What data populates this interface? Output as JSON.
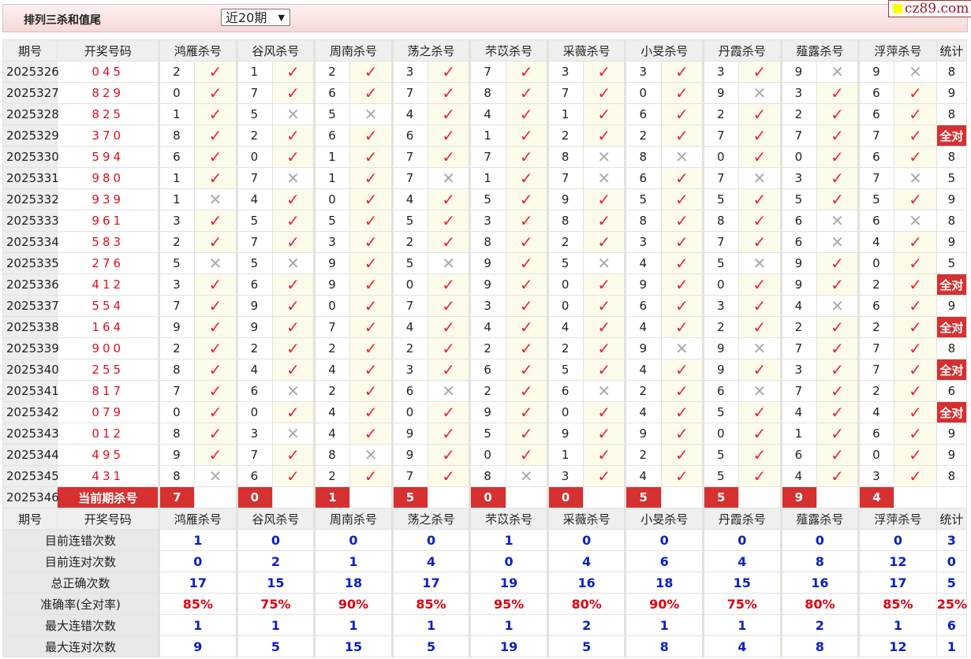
{
  "header": {
    "title": "排列三杀和值尾",
    "period_select": "近20期",
    "logo_text": "cz89.com"
  },
  "columns": {
    "period": "期号",
    "draw": "开奖号码",
    "groups": [
      "鸿雁杀号",
      "谷风杀号",
      "周南杀号",
      "荡之杀号",
      "芣苡杀号",
      "采薇杀号",
      "小旻杀号",
      "丹霞杀号",
      "薤露杀号",
      "浮萍杀号"
    ],
    "stat": "统计"
  },
  "marks": {
    "ok": "✓",
    "bad": "✕"
  },
  "colors": {
    "accent_red": "#d63030",
    "check_red": "#e8273b",
    "stat_blue": "#0a20c8"
  },
  "rows": [
    {
      "period": "2025326",
      "draw": "045",
      "nums": [
        2,
        1,
        2,
        3,
        7,
        3,
        3,
        3,
        9,
        9
      ],
      "ok": [
        1,
        1,
        1,
        1,
        1,
        1,
        1,
        1,
        0,
        0
      ],
      "stat": "8"
    },
    {
      "period": "2025327",
      "draw": "829",
      "nums": [
        0,
        7,
        6,
        7,
        8,
        7,
        0,
        9,
        3,
        6
      ],
      "ok": [
        1,
        1,
        1,
        1,
        1,
        1,
        1,
        0,
        1,
        1
      ],
      "stat": "9"
    },
    {
      "period": "2025328",
      "draw": "825",
      "nums": [
        1,
        5,
        5,
        4,
        4,
        1,
        6,
        2,
        2,
        6
      ],
      "ok": [
        1,
        0,
        0,
        1,
        1,
        1,
        1,
        1,
        1,
        1
      ],
      "stat": "8"
    },
    {
      "period": "2025329",
      "draw": "370",
      "nums": [
        8,
        2,
        6,
        6,
        1,
        2,
        2,
        7,
        7,
        7
      ],
      "ok": [
        1,
        1,
        1,
        1,
        1,
        1,
        1,
        1,
        1,
        1
      ],
      "stat": "全对"
    },
    {
      "period": "2025330",
      "draw": "594",
      "nums": [
        6,
        0,
        1,
        7,
        7,
        8,
        8,
        0,
        0,
        6
      ],
      "ok": [
        1,
        1,
        1,
        1,
        1,
        0,
        0,
        1,
        1,
        1
      ],
      "stat": "8"
    },
    {
      "period": "2025331",
      "draw": "980",
      "nums": [
        1,
        7,
        1,
        7,
        1,
        7,
        6,
        7,
        3,
        7
      ],
      "ok": [
        1,
        0,
        1,
        0,
        1,
        0,
        1,
        0,
        1,
        0
      ],
      "stat": "5"
    },
    {
      "period": "2025332",
      "draw": "939",
      "nums": [
        1,
        4,
        0,
        4,
        5,
        9,
        5,
        5,
        5,
        5
      ],
      "ok": [
        0,
        1,
        1,
        1,
        1,
        1,
        1,
        1,
        1,
        1
      ],
      "stat": "9"
    },
    {
      "period": "2025333",
      "draw": "961",
      "nums": [
        3,
        5,
        5,
        5,
        3,
        8,
        8,
        8,
        6,
        6
      ],
      "ok": [
        1,
        1,
        1,
        1,
        1,
        1,
        1,
        1,
        0,
        0
      ],
      "stat": "8"
    },
    {
      "period": "2025334",
      "draw": "583",
      "nums": [
        2,
        7,
        3,
        2,
        8,
        2,
        3,
        7,
        6,
        4
      ],
      "ok": [
        1,
        1,
        1,
        1,
        1,
        1,
        1,
        1,
        0,
        1
      ],
      "stat": "9"
    },
    {
      "period": "2025335",
      "draw": "276",
      "nums": [
        5,
        5,
        9,
        5,
        9,
        5,
        4,
        5,
        9,
        0
      ],
      "ok": [
        0,
        0,
        1,
        0,
        1,
        0,
        1,
        0,
        1,
        1
      ],
      "stat": "5"
    },
    {
      "period": "2025336",
      "draw": "412",
      "nums": [
        3,
        6,
        9,
        0,
        9,
        0,
        9,
        0,
        9,
        2
      ],
      "ok": [
        1,
        1,
        1,
        1,
        1,
        1,
        1,
        1,
        1,
        1
      ],
      "stat": "全对"
    },
    {
      "period": "2025337",
      "draw": "554",
      "nums": [
        7,
        9,
        0,
        7,
        3,
        0,
        6,
        3,
        4,
        6
      ],
      "ok": [
        1,
        1,
        1,
        1,
        1,
        1,
        1,
        1,
        0,
        1
      ],
      "stat": "9"
    },
    {
      "period": "2025338",
      "draw": "164",
      "nums": [
        9,
        9,
        7,
        4,
        4,
        4,
        4,
        2,
        2,
        2
      ],
      "ok": [
        1,
        1,
        1,
        1,
        1,
        1,
        1,
        1,
        1,
        1
      ],
      "stat": "全对"
    },
    {
      "period": "2025339",
      "draw": "900",
      "nums": [
        2,
        2,
        2,
        2,
        2,
        2,
        9,
        9,
        7,
        7
      ],
      "ok": [
        1,
        1,
        1,
        1,
        1,
        1,
        0,
        0,
        1,
        1
      ],
      "stat": "8"
    },
    {
      "period": "2025340",
      "draw": "255",
      "nums": [
        8,
        4,
        4,
        3,
        6,
        5,
        4,
        9,
        3,
        7
      ],
      "ok": [
        1,
        1,
        1,
        1,
        1,
        1,
        1,
        1,
        1,
        1
      ],
      "stat": "全对"
    },
    {
      "period": "2025341",
      "draw": "817",
      "nums": [
        7,
        6,
        2,
        6,
        2,
        6,
        2,
        6,
        7,
        2
      ],
      "ok": [
        1,
        0,
        1,
        0,
        1,
        0,
        1,
        0,
        1,
        1
      ],
      "stat": "6"
    },
    {
      "period": "2025342",
      "draw": "079",
      "nums": [
        0,
        0,
        4,
        0,
        9,
        0,
        4,
        5,
        4,
        4
      ],
      "ok": [
        1,
        1,
        1,
        1,
        1,
        1,
        1,
        1,
        1,
        1
      ],
      "stat": "全对"
    },
    {
      "period": "2025343",
      "draw": "012",
      "nums": [
        8,
        3,
        4,
        9,
        5,
        9,
        9,
        0,
        1,
        6
      ],
      "ok": [
        1,
        0,
        1,
        1,
        1,
        1,
        1,
        1,
        1,
        1
      ],
      "stat": "9"
    },
    {
      "period": "2025344",
      "draw": "495",
      "nums": [
        9,
        7,
        8,
        9,
        0,
        1,
        2,
        5,
        6,
        0
      ],
      "ok": [
        1,
        1,
        0,
        1,
        1,
        1,
        1,
        1,
        1,
        1
      ],
      "stat": "9"
    },
    {
      "period": "2025345",
      "draw": "431",
      "nums": [
        8,
        6,
        2,
        7,
        8,
        3,
        4,
        5,
        4,
        3
      ],
      "ok": [
        0,
        1,
        1,
        1,
        0,
        1,
        1,
        1,
        1,
        1
      ],
      "stat": "8"
    }
  ],
  "current": {
    "period": "2025346",
    "label": "当前期杀号",
    "nums": [
      7,
      0,
      1,
      5,
      0,
      0,
      5,
      5,
      9,
      4
    ]
  },
  "summary": [
    {
      "label": "目前连错次数",
      "values": [
        "1",
        "0",
        "0",
        "0",
        "1",
        "0",
        "0",
        "0",
        "0",
        "0"
      ],
      "stat": "3"
    },
    {
      "label": "目前连对次数",
      "values": [
        "0",
        "2",
        "1",
        "4",
        "0",
        "4",
        "6",
        "4",
        "8",
        "12"
      ],
      "stat": "0"
    },
    {
      "label": "总正确次数",
      "values": [
        "17",
        "15",
        "18",
        "17",
        "19",
        "16",
        "18",
        "15",
        "16",
        "17"
      ],
      "stat": "5"
    },
    {
      "label": "准确率(全对率)",
      "values": [
        "85%",
        "75%",
        "90%",
        "85%",
        "95%",
        "80%",
        "90%",
        "75%",
        "80%",
        "85%"
      ],
      "stat": "25%",
      "pct": true
    },
    {
      "label": "最大连错次数",
      "values": [
        "1",
        "1",
        "1",
        "1",
        "1",
        "2",
        "1",
        "1",
        "2",
        "1"
      ],
      "stat": "6"
    },
    {
      "label": "最大连对次数",
      "values": [
        "9",
        "5",
        "15",
        "5",
        "19",
        "5",
        "8",
        "4",
        "8",
        "12"
      ],
      "stat": "1"
    }
  ]
}
